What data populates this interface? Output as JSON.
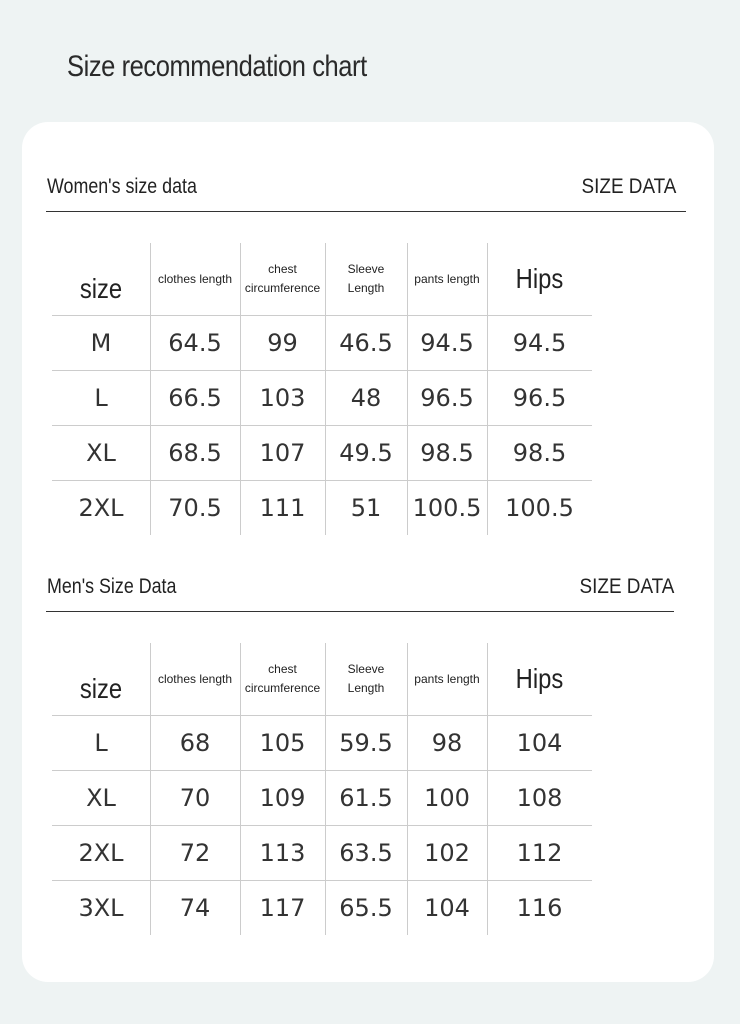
{
  "header": {
    "title": "Size recommendation chart"
  },
  "sections": [
    {
      "title": "Women's size data",
      "tag": "SIZE DATA",
      "table": {
        "headers": [
          "size",
          "clothes length",
          "chest circumference",
          "Sleeve Length",
          "pants length",
          "Hips"
        ],
        "rows": [
          [
            "M",
            "64.5",
            "99",
            "46.5",
            "94.5",
            "94.5"
          ],
          [
            "L",
            "66.5",
            "103",
            "48",
            "96.5",
            "96.5"
          ],
          [
            "XL",
            "68.5",
            "107",
            "49.5",
            "98.5",
            "98.5"
          ],
          [
            "2XL",
            "70.5",
            "111",
            "51",
            "100.5",
            "100.5"
          ]
        ]
      }
    },
    {
      "title": "Men's Size Data",
      "tag": "SIZE DATA",
      "table": {
        "headers": [
          "size",
          "clothes length",
          "chest circumference",
          "Sleeve Length",
          "pants length",
          "Hips"
        ],
        "rows": [
          [
            "L",
            "68",
            "105",
            "59.5",
            "98",
            "104"
          ],
          [
            "XL",
            "70",
            "109",
            "61.5",
            "100",
            "108"
          ],
          [
            "2XL",
            "72",
            "113",
            "63.5",
            "102",
            "112"
          ],
          [
            "3XL",
            "74",
            "117",
            "65.5",
            "104",
            "116"
          ]
        ]
      }
    }
  ]
}
